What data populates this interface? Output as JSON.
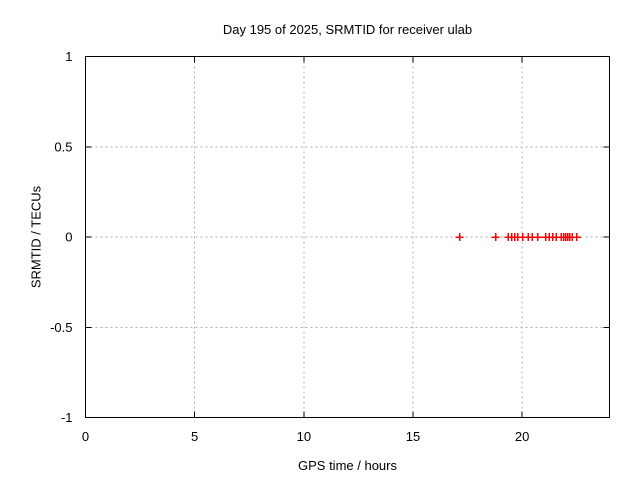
{
  "window": {
    "background": "#ffffff"
  },
  "colors": {
    "border": "#000000",
    "grid": "#b0b0b0",
    "text": "#000000",
    "marker": "#ff0000"
  },
  "chart_data": {
    "type": "scatter",
    "title": "Day 195 of 2025, SRMTID for receiver ulab",
    "xlabel": "GPS time / hours",
    "ylabel": "SRMTID / TECUs",
    "xlim": [
      0,
      24
    ],
    "ylim": [
      -1,
      1
    ],
    "x_ticks": [
      0,
      5,
      10,
      15,
      20
    ],
    "x_tick_labels": [
      "0",
      "5",
      "10",
      "15",
      "20"
    ],
    "y_ticks": [
      -1,
      -0.5,
      0,
      0.5,
      1
    ],
    "y_tick_labels": [
      "-1",
      "-0.5",
      "0",
      "0.5",
      "1"
    ],
    "x_gridlines": [
      5,
      10,
      15,
      20
    ],
    "y_gridlines": [
      -0.5,
      0,
      0.5
    ],
    "grid": true,
    "legend": "none",
    "marker": {
      "shape": "plus",
      "color": "#ff0000",
      "size": 8
    },
    "series": [
      {
        "name": "SRMTID",
        "x": [
          17.13,
          18.78,
          19.37,
          19.52,
          19.66,
          19.8,
          20.03,
          20.29,
          20.47,
          20.72,
          21.07,
          21.25,
          21.39,
          21.57,
          21.8,
          21.91,
          22.0,
          22.09,
          22.18,
          22.3,
          22.51
        ],
        "y": [
          0,
          0,
          0,
          0,
          0,
          0,
          0,
          0,
          0,
          0,
          0,
          0,
          0,
          0,
          0,
          0,
          0,
          0,
          0,
          0,
          0
        ]
      }
    ]
  }
}
